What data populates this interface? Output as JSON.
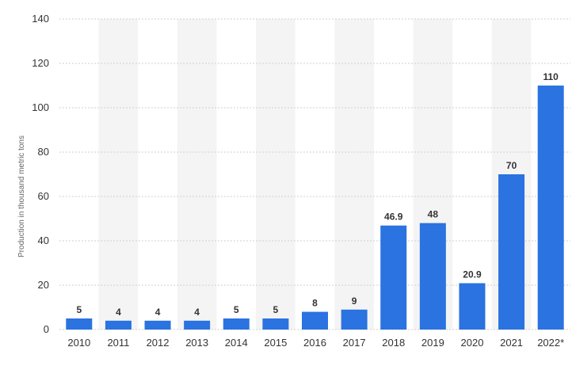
{
  "chart_data": {
    "type": "bar",
    "categories": [
      "2010",
      "2011",
      "2012",
      "2013",
      "2014",
      "2015",
      "2016",
      "2017",
      "2018",
      "2019",
      "2020",
      "2021",
      "2022*"
    ],
    "values": [
      5,
      4,
      4,
      4,
      5,
      5,
      8,
      9,
      46.9,
      48,
      20.9,
      70,
      110
    ],
    "value_labels": [
      "5",
      "4",
      "4",
      "4",
      "5",
      "5",
      "8",
      "9",
      "46.9",
      "48",
      "20.9",
      "70",
      "110"
    ],
    "title": "",
    "xlabel": "",
    "ylabel": "Production in thousand metric tons",
    "ylim": [
      0,
      140
    ],
    "yticks": [
      0,
      20,
      40,
      60,
      80,
      100,
      120,
      140
    ],
    "grid": "horizontal dotted",
    "colors": {
      "bar": "#2a73e0",
      "band": "#f4f4f4",
      "grid": "#cfcfcf"
    }
  }
}
